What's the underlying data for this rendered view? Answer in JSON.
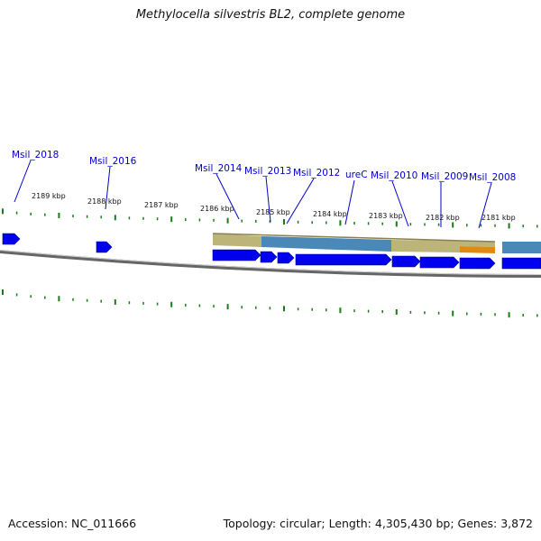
{
  "title": "Methylocella silvestris BL2, complete genome",
  "footer": {
    "accession": "Accession: NC_011666",
    "topology": "Topology: circular; Length: 4,305,430 bp; Genes: 3,872"
  },
  "colors": {
    "gene_label": "#0000cc",
    "tick": "#1a7a1a",
    "cds_arrow": "#0000ee",
    "backbone": "#7a7a7a",
    "feature_khaki": "#bdb47a",
    "feature_steelblue": "#4a88b8",
    "feature_orange": "#e08a10"
  },
  "kbp_labels": [
    "2189 kbp",
    "2188 kbp",
    "2187 kbp",
    "2186 kbp",
    "2185 kbp",
    "2184 kbp",
    "2183 kbp",
    "2182 kbp",
    "2181 kbp"
  ],
  "gene_labels": [
    "Msil_2018",
    "Msil_2016",
    "Msil_2014",
    "Msil_2013",
    "Msil_2012",
    "ureC",
    "Msil_2010",
    "Msil_2009",
    "Msil_2008"
  ]
}
